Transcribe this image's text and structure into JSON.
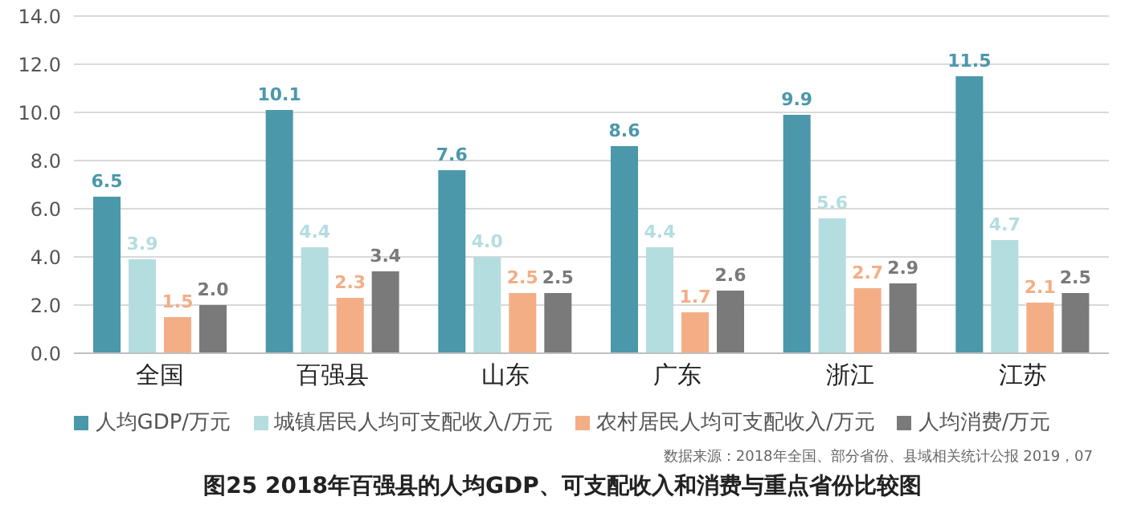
{
  "chart_data": {
    "type": "bar",
    "title": "图25 2018年百强县的人均GDP、可支配收入和消费与重点省份比较图",
    "annotations": [
      "数据来源：2018年全国、部分省份、县域相关统计公报 2019，07"
    ],
    "categories": [
      "全国",
      "百强县",
      "山东",
      "广东",
      "浙江",
      "江苏"
    ],
    "series": [
      {
        "name": "人均GDP/万元",
        "color": "#4b98ab",
        "values": [
          6.5,
          10.1,
          7.6,
          8.6,
          9.9,
          11.5
        ],
        "value_labels": [
          "6.5",
          "10.1",
          "7.6",
          "8.6",
          "9.9",
          "11.5"
        ]
      },
      {
        "name": "城镇居民人均可支配收入/万元",
        "color": "#b4dde0",
        "values": [
          3.9,
          4.4,
          4.0,
          4.4,
          5.6,
          4.7
        ],
        "value_labels": [
          "3.9",
          "4.4",
          "4.0",
          "4.4",
          "5.6",
          "4.7"
        ]
      },
      {
        "name": "农村居民人均可支配收入/万元",
        "color": "#f3ae86",
        "values": [
          1.5,
          2.3,
          2.5,
          1.7,
          2.7,
          2.1
        ],
        "value_labels": [
          "1.5",
          "2.3",
          "2.5",
          "1.7",
          "2.7",
          "2.1"
        ]
      },
      {
        "name": "人均消费/万元",
        "color": "#7a7a7a",
        "values": [
          2.0,
          3.4,
          2.5,
          2.6,
          2.9,
          2.5
        ],
        "value_labels": [
          "2.0",
          "3.4",
          "2.5",
          "2.6",
          "2.9",
          "2.5"
        ]
      }
    ],
    "ylim": [
      0,
      14
    ],
    "yticks": [
      {
        "value": 0,
        "label": "0.0"
      },
      {
        "value": 2,
        "label": "2.0"
      },
      {
        "value": 4,
        "label": "4.0"
      },
      {
        "value": 6,
        "label": "6.0"
      },
      {
        "value": 8,
        "label": "8.0"
      },
      {
        "value": 10,
        "label": "10.0"
      },
      {
        "value": 12,
        "label": "12.0"
      },
      {
        "value": 14,
        "label": "14.0"
      }
    ],
    "grid": "y",
    "legend": "bottom"
  }
}
